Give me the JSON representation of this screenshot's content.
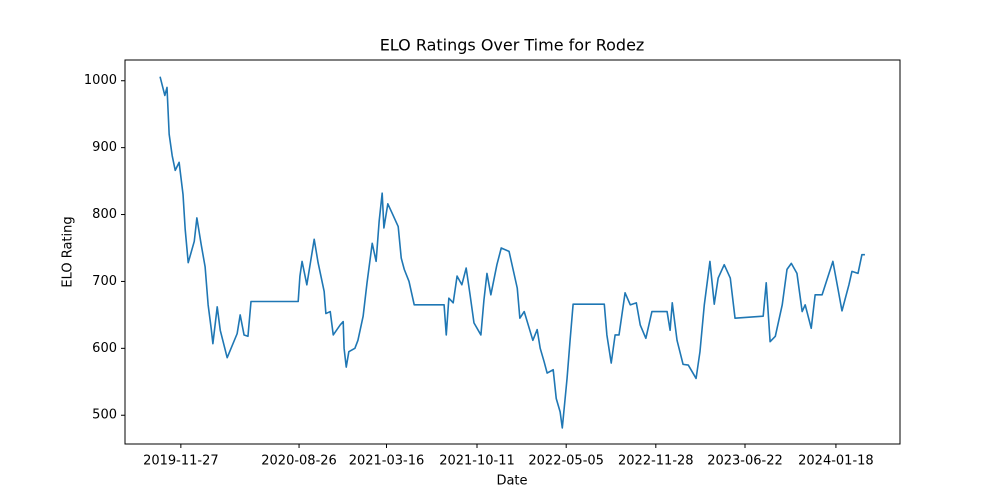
{
  "chart_data": {
    "type": "line",
    "title": "ELO Ratings Over Time for Rodez",
    "xlabel": "Date",
    "ylabel": "ELO Rating",
    "x": [
      "2019-10-10",
      "2019-10-21",
      "2019-10-26",
      "2019-10-31",
      "2019-11-07",
      "2019-11-14",
      "2019-11-23",
      "2019-12-02",
      "2019-12-07",
      "2019-12-14",
      "2019-12-28",
      "2020-01-03",
      "2020-01-13",
      "2020-01-22",
      "2020-01-29",
      "2020-02-05",
      "2020-02-09",
      "2020-02-19",
      "2020-02-26",
      "2020-03-13",
      "2020-04-05",
      "2020-04-12",
      "2020-04-21",
      "2020-04-30",
      "2020-05-07",
      "2020-08-24",
      "2020-08-28",
      "2020-09-02",
      "2020-09-13",
      "2020-09-30",
      "2020-10-09",
      "2020-10-23",
      "2020-10-27",
      "2020-11-06",
      "2020-11-13",
      "2020-11-29",
      "2020-12-06",
      "2020-12-08",
      "2020-12-13",
      "2020-12-19",
      "2021-01-02",
      "2021-01-09",
      "2021-01-21",
      "2021-01-30",
      "2021-02-11",
      "2021-02-20",
      "2021-02-27",
      "2021-03-06",
      "2021-03-10",
      "2021-03-19",
      "2021-03-29",
      "2021-04-12",
      "2021-04-19",
      "2021-04-26",
      "2021-05-07",
      "2021-05-19",
      "2021-07-27",
      "2021-08-01",
      "2021-08-07",
      "2021-08-17",
      "2021-08-26",
      "2021-09-06",
      "2021-09-16",
      "2021-09-25",
      "2021-10-04",
      "2021-10-20",
      "2021-10-27",
      "2021-11-03",
      "2021-11-12",
      "2021-11-26",
      "2021-12-06",
      "2021-12-24",
      "2022-01-12",
      "2022-01-18",
      "2022-01-28",
      "2022-02-17",
      "2022-02-27",
      "2022-03-06",
      "2022-03-15",
      "2022-03-22",
      "2022-04-05",
      "2022-04-12",
      "2022-04-21",
      "2022-04-26",
      "2022-05-07",
      "2022-05-14",
      "2022-05-21",
      "2022-08-01",
      "2022-08-07",
      "2022-08-17",
      "2022-08-26",
      "2022-09-04",
      "2022-09-18",
      "2022-09-30",
      "2022-10-14",
      "2022-10-23",
      "2022-11-05",
      "2022-11-19",
      "2022-12-24",
      "2022-12-31",
      "2023-01-05",
      "2023-01-16",
      "2023-01-30",
      "2023-02-11",
      "2023-03-01",
      "2023-03-10",
      "2023-03-20",
      "2023-04-02",
      "2023-04-12",
      "2023-04-21",
      "2023-05-05",
      "2023-05-19",
      "2023-05-30",
      "2023-08-03",
      "2023-08-10",
      "2023-08-19",
      "2023-08-31",
      "2023-09-16",
      "2023-09-27",
      "2023-10-07",
      "2023-10-20",
      "2023-11-01",
      "2023-11-08",
      "2023-11-22",
      "2023-12-01",
      "2023-12-13",
      "2023-12-17",
      "2024-01-11",
      "2024-01-23",
      "2024-02-01",
      "2024-02-17",
      "2024-02-24",
      "2024-03-09",
      "2024-03-18",
      "2024-03-25"
    ],
    "values": [
      1006,
      978,
      990,
      920,
      888,
      866,
      878,
      830,
      778,
      728,
      760,
      795,
      755,
      722,
      665,
      630,
      607,
      662,
      627,
      586,
      622,
      650,
      620,
      618,
      670,
      670,
      708,
      730,
      695,
      763,
      728,
      685,
      652,
      655,
      620,
      635,
      640,
      600,
      572,
      595,
      600,
      612,
      648,
      698,
      757,
      730,
      790,
      832,
      780,
      816,
      802,
      782,
      735,
      718,
      700,
      665,
      665,
      620,
      675,
      668,
      708,
      695,
      720,
      680,
      638,
      620,
      672,
      712,
      680,
      725,
      750,
      745,
      690,
      645,
      655,
      612,
      628,
      600,
      580,
      563,
      568,
      525,
      505,
      481,
      555,
      612,
      666,
      666,
      620,
      578,
      620,
      620,
      683,
      665,
      668,
      635,
      615,
      655,
      655,
      627,
      668,
      612,
      576,
      575,
      555,
      595,
      665,
      730,
      666,
      705,
      725,
      705,
      645,
      648,
      698,
      610,
      618,
      665,
      718,
      727,
      712,
      655,
      665,
      630,
      680,
      680,
      680,
      730,
      688,
      656,
      695,
      715,
      712,
      740,
      740
    ],
    "color": "#1f77b4",
    "xlim": [
      "2019-07-21",
      "2024-06-14"
    ],
    "xticks": [
      "2019-11-27",
      "2020-08-26",
      "2021-03-16",
      "2021-10-11",
      "2022-05-05",
      "2022-11-28",
      "2023-06-22",
      "2024-01-18"
    ],
    "ylim": [
      457,
      1031
    ],
    "yticks": [
      500,
      600,
      700,
      800,
      900,
      1000
    ]
  }
}
